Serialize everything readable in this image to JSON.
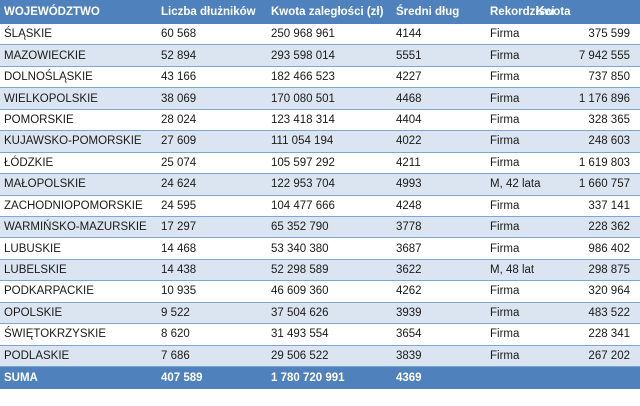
{
  "columns": [
    "WOJEWÓDZTWO",
    "Liczba dłużników",
    "Kwota zaległości (zł)",
    "Średni dług",
    "Rekordziści",
    "Kwota"
  ],
  "rows": [
    [
      "ŚLĄSKIE",
      "60 568",
      "250 968 961",
      "4144",
      "Firma",
      "375 599"
    ],
    [
      "MAZOWIECKIE",
      "52 894",
      "293 598 014",
      "5551",
      "Firma",
      "7 942 555"
    ],
    [
      "DOLNOŚLĄSKIE",
      "43 166",
      "182 466 523",
      "4227",
      "Firma",
      "737 850"
    ],
    [
      "WIELKOPOLSKIE",
      "38 069",
      "170 080 501",
      "4468",
      "Firma",
      "1 176 896"
    ],
    [
      "POMORSKIE",
      "28 024",
      "123 418 314",
      "4404",
      "Firma",
      "328 365"
    ],
    [
      "KUJAWSKO-POMORSKIE",
      "27 609",
      "111 054 194",
      "4022",
      "Firma",
      "248 603"
    ],
    [
      "ŁÓDZKIE",
      "25 074",
      "105 597 292",
      "4211",
      "Firma",
      "1 619 803"
    ],
    [
      "MAŁOPOLSKIE",
      "24 624",
      "122 953 704",
      "4993",
      "M, 42 lata",
      "1 660 757"
    ],
    [
      "ZACHODNIOPOMORSKIE",
      "24 595",
      "104 477 666",
      "4248",
      "Firma",
      "337 141"
    ],
    [
      "WARMIŃSKO-MAZURSKIE",
      "17 297",
      "65 352 790",
      "3778",
      "Firma",
      "228 362"
    ],
    [
      "LUBUSKIE",
      "14 468",
      "53 340 380",
      "3687",
      "Firma",
      "986 402"
    ],
    [
      "LUBELSKIE",
      "14 438",
      "52 298 589",
      "3622",
      "M, 48 lat",
      "298 875"
    ],
    [
      "PODKARPACKIE",
      "10 935",
      "46 609 360",
      "4262",
      "Firma",
      "320 964"
    ],
    [
      "OPOLSKIE",
      "9 522",
      "37 504 626",
      "3939",
      "Firma",
      "483 522"
    ],
    [
      "ŚWIĘTOKRZYSKIE",
      "8 620",
      "31 493 554",
      "3654",
      "Firma",
      "228 341"
    ],
    [
      "PODLASKIE",
      "7 686",
      "29 506 522",
      "3839",
      "Firma",
      "267 202"
    ]
  ],
  "footer": [
    "SUMA",
    "407 589",
    "1 780 720 991",
    "4369",
    "",
    ""
  ],
  "colors": {
    "header_bg": "#4f81bd",
    "band_bg": "#dbe5f1",
    "row_border": "#7fa6d2"
  }
}
